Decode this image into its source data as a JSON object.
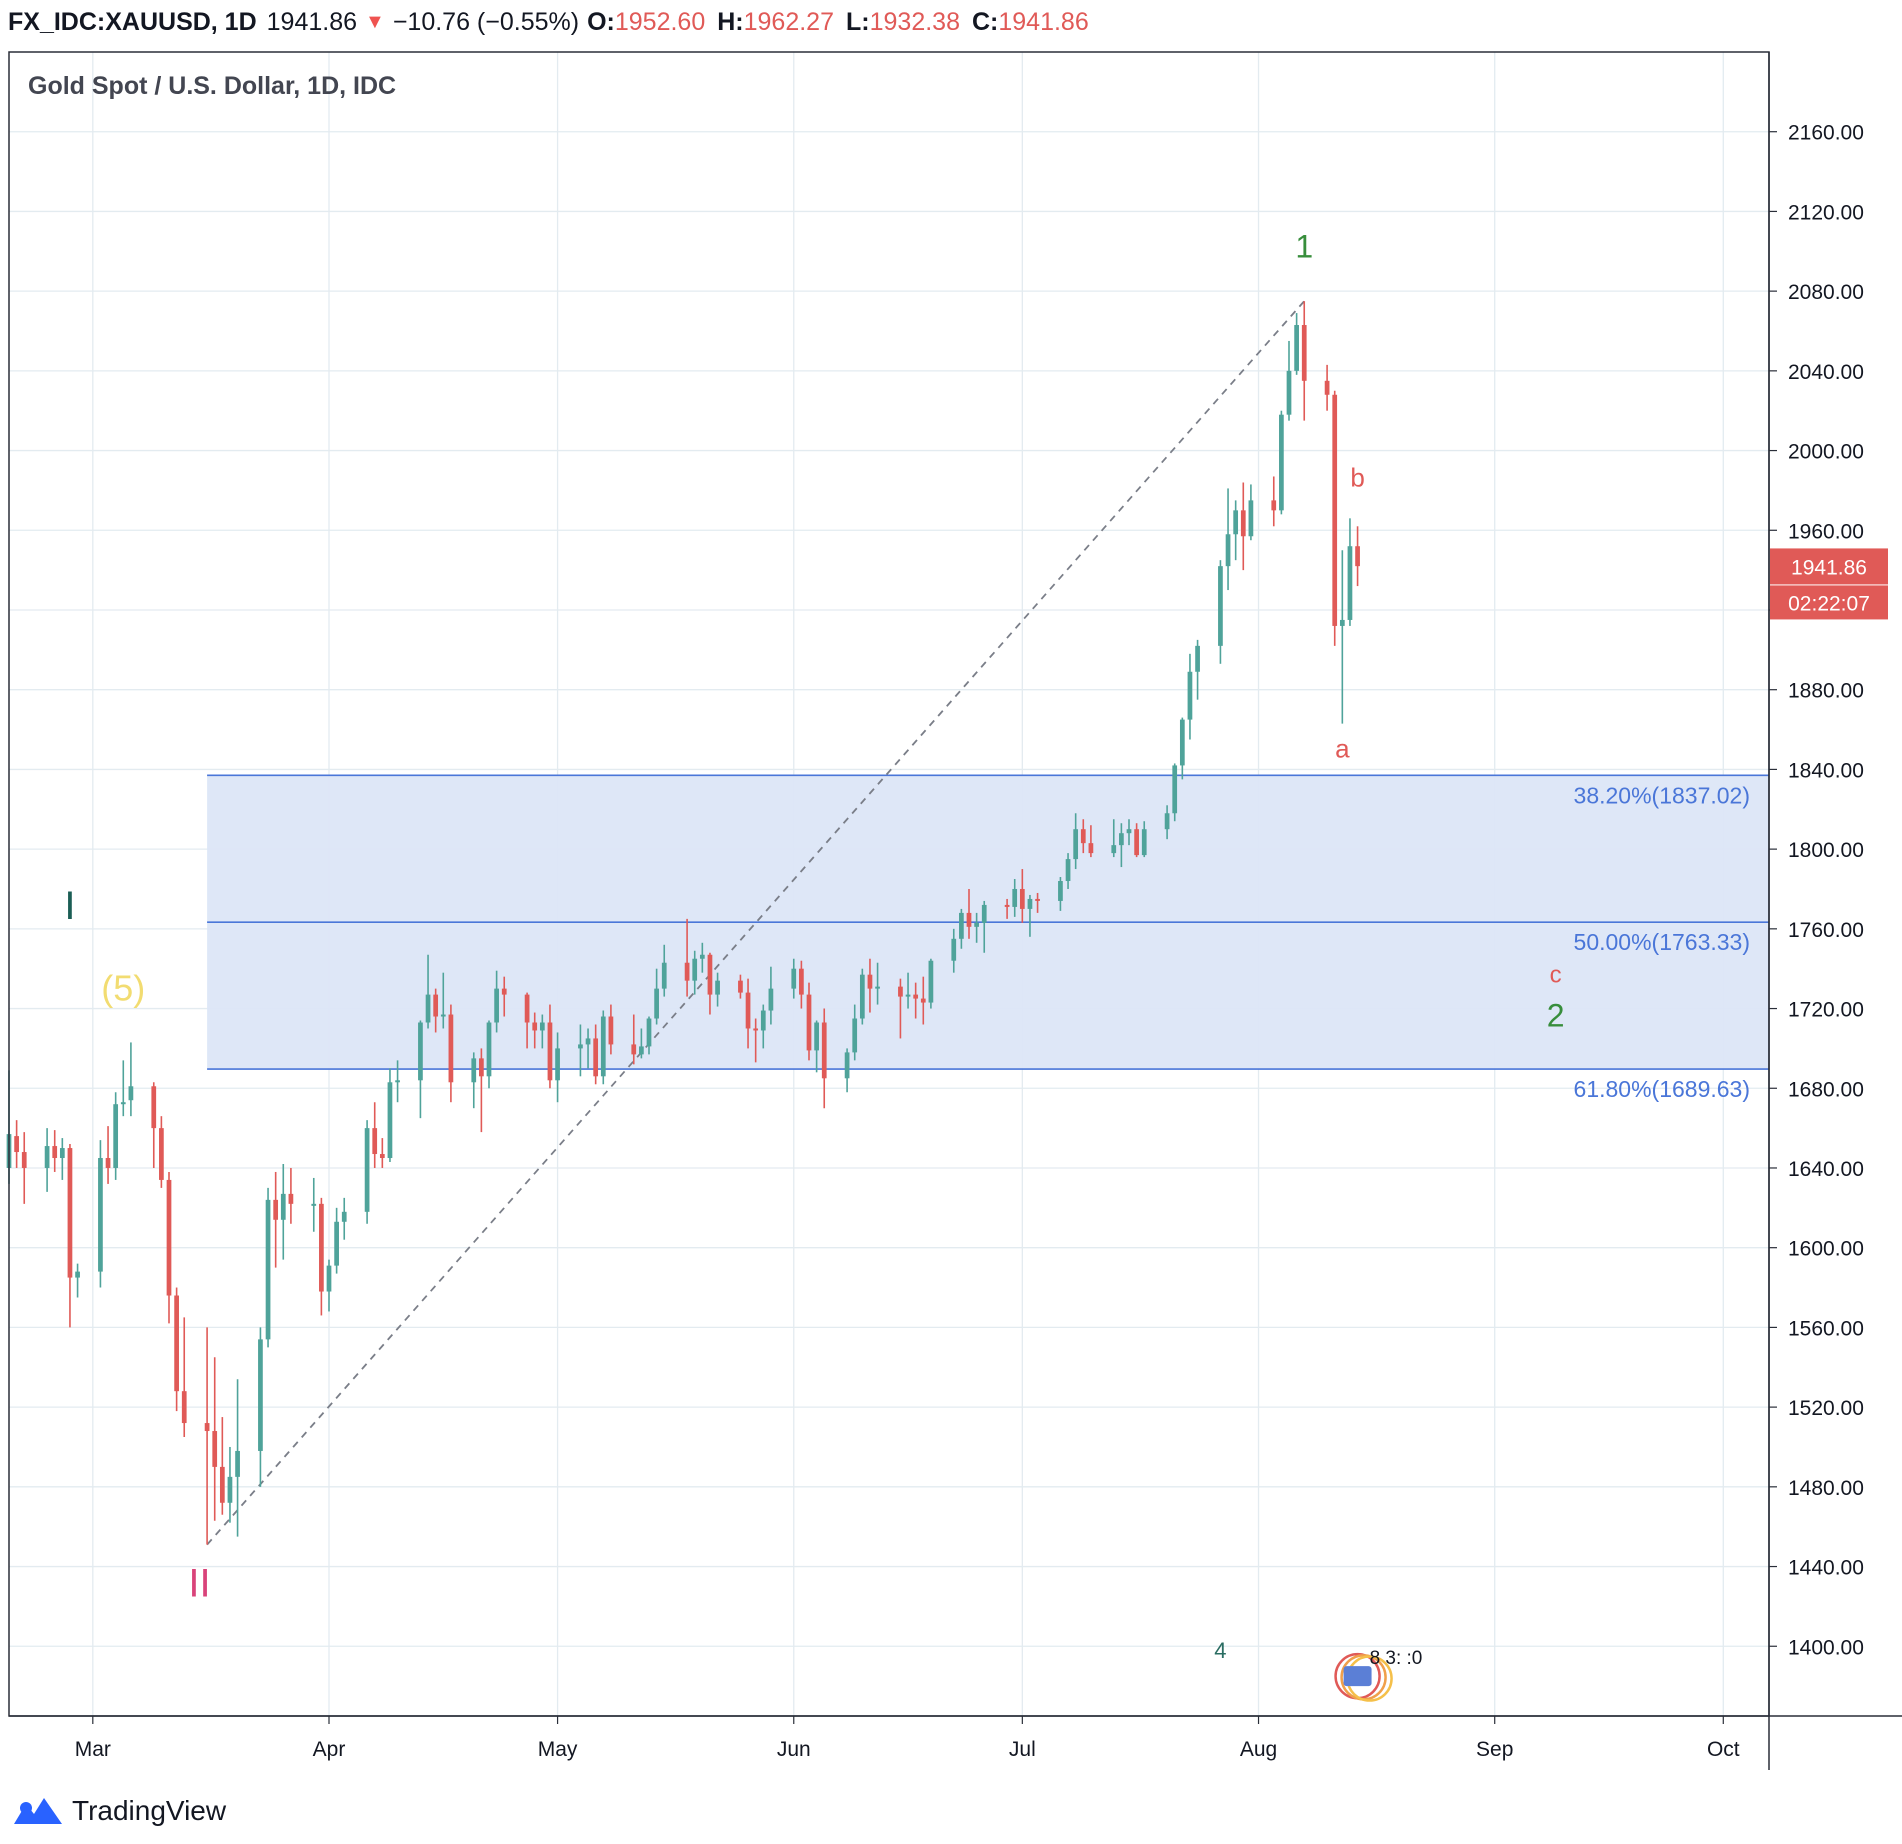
{
  "header": {
    "symbol": "FX_IDC:XAUUSD, 1D",
    "last": "1941.86",
    "change_arrow": "▼",
    "change": "−10.76 (−0.55%)",
    "o_label": "O:",
    "o": "1952.60",
    "h_label": "H:",
    "h": "1962.27",
    "l_label": "L:",
    "l": "1932.38",
    "c_label": "C:",
    "c": "1941.86"
  },
  "footer": {
    "brand": "TradingView"
  },
  "colors": {
    "up": "#4fa39a",
    "down": "#e05a57",
    "fib_fill": "#dce6f7",
    "fib_line": "#4a76d8",
    "grid": "#e3ebf0"
  },
  "chart_data": {
    "type": "candlestick",
    "title": "Gold Spot / U.S. Dollar, 1D, IDC",
    "ylim": [
      1365,
      2200
    ],
    "y_ticks": [
      1400,
      1440,
      1480,
      1520,
      1560,
      1600,
      1640,
      1680,
      1720,
      1760,
      1800,
      1840,
      1880,
      1920,
      1960,
      2000,
      2040,
      2080,
      2120,
      2160
    ],
    "x_ticks": [
      {
        "label": "Mar",
        "date": "2020-03-01"
      },
      {
        "label": "Apr",
        "date": "2020-04-01"
      },
      {
        "label": "May",
        "date": "2020-05-01"
      },
      {
        "label": "Jun",
        "date": "2020-06-01"
      },
      {
        "label": "Jul",
        "date": "2020-07-01"
      },
      {
        "label": "Aug",
        "date": "2020-08-01"
      },
      {
        "label": "Sep",
        "date": "2020-09-01"
      },
      {
        "label": "Oct",
        "date": "2020-10-01"
      }
    ],
    "x_range": [
      "2020-02-19",
      "2020-10-07"
    ],
    "price_tag": {
      "price": 1941.86,
      "label": "1941.86",
      "countdown": "02:22:07"
    },
    "fib_levels": [
      {
        "label": "38.20%(1837.02)",
        "price": 1837.02
      },
      {
        "label": "50.00%(1763.33)",
        "price": 1763.33
      },
      {
        "label": "61.80%(1689.63)",
        "price": 1689.63
      }
    ],
    "fib_zone_start": "2020-03-16",
    "trend_line": {
      "from": {
        "date": "2020-03-16",
        "price": 1451
      },
      "to": {
        "date": "2020-08-07",
        "price": 2075
      }
    },
    "wave_labels": [
      {
        "text": "1",
        "date": "2020-08-07",
        "price": 2097,
        "color": "#388e3c",
        "size": 32
      },
      {
        "text": "b",
        "date": "2020-08-14",
        "price": 1982,
        "color": "#e05a57",
        "size": 26
      },
      {
        "text": "a",
        "date": "2020-08-12",
        "price": 1846,
        "color": "#e05a57",
        "size": 26
      },
      {
        "text": "c",
        "date": "2020-09-09",
        "price": 1733,
        "color": "#e05a57",
        "size": 24
      },
      {
        "text": "2",
        "date": "2020-09-09",
        "price": 1711,
        "color": "#388e3c",
        "size": 32
      },
      {
        "text": "I",
        "date": "2020-02-27",
        "price": 1765,
        "color": "#1b5e55",
        "size": 40
      },
      {
        "text": "(5)",
        "date": "2020-03-05",
        "price": 1724,
        "color": "#f2dc71",
        "size": 36
      },
      {
        "text": "II",
        "date": "2020-03-15",
        "price": 1425,
        "color": "#d9437a",
        "size": 40
      },
      {
        "text": "4",
        "date": "2020-07-27",
        "price": 1394,
        "color": "#2a6d62",
        "size": 22
      }
    ],
    "event_marker": {
      "text": "8 3: :0",
      "date": "2020-08-14",
      "price": 1385
    },
    "candles": [
      {
        "d": "2020-02-19",
        "o": 1640,
        "h": 1689,
        "l": 1632,
        "c": 1657
      },
      {
        "d": "2020-02-20",
        "o": 1656,
        "h": 1664,
        "l": 1640,
        "c": 1648
      },
      {
        "d": "2020-02-21",
        "o": 1648,
        "h": 1658,
        "l": 1622,
        "c": 1640
      },
      {
        "d": "2020-02-24",
        "o": 1640,
        "h": 1660,
        "l": 1628,
        "c": 1651
      },
      {
        "d": "2020-02-25",
        "o": 1651,
        "h": 1659,
        "l": 1638,
        "c": 1645
      },
      {
        "d": "2020-02-26",
        "o": 1645,
        "h": 1655,
        "l": 1634,
        "c": 1650
      },
      {
        "d": "2020-02-27",
        "o": 1650,
        "h": 1652,
        "l": 1560,
        "c": 1585
      },
      {
        "d": "2020-02-28",
        "o": 1585,
        "h": 1592,
        "l": 1575,
        "c": 1588
      },
      {
        "d": "2020-03-02",
        "o": 1588,
        "h": 1654,
        "l": 1580,
        "c": 1645
      },
      {
        "d": "2020-03-03",
        "o": 1645,
        "h": 1661,
        "l": 1632,
        "c": 1640
      },
      {
        "d": "2020-03-04",
        "o": 1640,
        "h": 1678,
        "l": 1634,
        "c": 1672
      },
      {
        "d": "2020-03-05",
        "o": 1672,
        "h": 1694,
        "l": 1666,
        "c": 1673
      },
      {
        "d": "2020-03-06",
        "o": 1674,
        "h": 1703,
        "l": 1666,
        "c": 1681
      },
      {
        "d": "2020-03-09",
        "o": 1681,
        "h": 1683,
        "l": 1640,
        "c": 1660
      },
      {
        "d": "2020-03-10",
        "o": 1660,
        "h": 1666,
        "l": 1630,
        "c": 1634
      },
      {
        "d": "2020-03-11",
        "o": 1634,
        "h": 1638,
        "l": 1562,
        "c": 1576
      },
      {
        "d": "2020-03-12",
        "o": 1576,
        "h": 1580,
        "l": 1518,
        "c": 1528
      },
      {
        "d": "2020-03-13",
        "o": 1528,
        "h": 1565,
        "l": 1505,
        "c": 1512
      },
      {
        "d": "2020-03-16",
        "o": 1512,
        "h": 1560,
        "l": 1451,
        "c": 1508
      },
      {
        "d": "2020-03-17",
        "o": 1508,
        "h": 1545,
        "l": 1463,
        "c": 1490
      },
      {
        "d": "2020-03-18",
        "o": 1490,
        "h": 1515,
        "l": 1466,
        "c": 1472
      },
      {
        "d": "2020-03-19",
        "o": 1472,
        "h": 1500,
        "l": 1462,
        "c": 1485
      },
      {
        "d": "2020-03-20",
        "o": 1485,
        "h": 1534,
        "l": 1455,
        "c": 1498
      },
      {
        "d": "2020-03-23",
        "o": 1498,
        "h": 1560,
        "l": 1480,
        "c": 1554
      },
      {
        "d": "2020-03-24",
        "o": 1554,
        "h": 1630,
        "l": 1550,
        "c": 1624
      },
      {
        "d": "2020-03-25",
        "o": 1624,
        "h": 1638,
        "l": 1590,
        "c": 1614
      },
      {
        "d": "2020-03-26",
        "o": 1614,
        "h": 1642,
        "l": 1594,
        "c": 1627
      },
      {
        "d": "2020-03-27",
        "o": 1627,
        "h": 1640,
        "l": 1612,
        "c": 1622
      },
      {
        "d": "2020-03-30",
        "o": 1622,
        "h": 1635,
        "l": 1608,
        "c": 1622
      },
      {
        "d": "2020-03-31",
        "o": 1622,
        "h": 1625,
        "l": 1566,
        "c": 1578
      },
      {
        "d": "2020-04-01",
        "o": 1578,
        "h": 1594,
        "l": 1568,
        "c": 1591
      },
      {
        "d": "2020-04-02",
        "o": 1591,
        "h": 1620,
        "l": 1587,
        "c": 1613
      },
      {
        "d": "2020-04-03",
        "o": 1613,
        "h": 1625,
        "l": 1604,
        "c": 1618
      },
      {
        "d": "2020-04-06",
        "o": 1618,
        "h": 1664,
        "l": 1612,
        "c": 1660
      },
      {
        "d": "2020-04-07",
        "o": 1660,
        "h": 1673,
        "l": 1640,
        "c": 1647
      },
      {
        "d": "2020-04-08",
        "o": 1647,
        "h": 1655,
        "l": 1640,
        "c": 1645
      },
      {
        "d": "2020-04-09",
        "o": 1645,
        "h": 1690,
        "l": 1643,
        "c": 1683
      },
      {
        "d": "2020-04-10",
        "o": 1683,
        "h": 1694,
        "l": 1673,
        "c": 1684
      },
      {
        "d": "2020-04-13",
        "o": 1684,
        "h": 1714,
        "l": 1665,
        "c": 1713
      },
      {
        "d": "2020-04-14",
        "o": 1713,
        "h": 1747,
        "l": 1710,
        "c": 1727
      },
      {
        "d": "2020-04-15",
        "o": 1727,
        "h": 1730,
        "l": 1708,
        "c": 1716
      },
      {
        "d": "2020-04-16",
        "o": 1716,
        "h": 1738,
        "l": 1710,
        "c": 1717
      },
      {
        "d": "2020-04-17",
        "o": 1717,
        "h": 1722,
        "l": 1673,
        "c": 1683
      },
      {
        "d": "2020-04-20",
        "o": 1683,
        "h": 1698,
        "l": 1670,
        "c": 1695
      },
      {
        "d": "2020-04-21",
        "o": 1695,
        "h": 1700,
        "l": 1658,
        "c": 1686
      },
      {
        "d": "2020-04-22",
        "o": 1686,
        "h": 1714,
        "l": 1680,
        "c": 1713
      },
      {
        "d": "2020-04-23",
        "o": 1713,
        "h": 1739,
        "l": 1708,
        "c": 1730
      },
      {
        "d": "2020-04-24",
        "o": 1730,
        "h": 1736,
        "l": 1716,
        "c": 1727
      },
      {
        "d": "2020-04-27",
        "o": 1727,
        "h": 1728,
        "l": 1700,
        "c": 1713
      },
      {
        "d": "2020-04-28",
        "o": 1713,
        "h": 1718,
        "l": 1700,
        "c": 1709
      },
      {
        "d": "2020-04-29",
        "o": 1709,
        "h": 1717,
        "l": 1700,
        "c": 1713
      },
      {
        "d": "2020-04-30",
        "o": 1713,
        "h": 1722,
        "l": 1680,
        "c": 1684
      },
      {
        "d": "2020-05-01",
        "o": 1684,
        "h": 1708,
        "l": 1673,
        "c": 1700
      },
      {
        "d": "2020-05-04",
        "o": 1700,
        "h": 1712,
        "l": 1686,
        "c": 1702
      },
      {
        "d": "2020-05-05",
        "o": 1702,
        "h": 1710,
        "l": 1690,
        "c": 1705
      },
      {
        "d": "2020-05-06",
        "o": 1705,
        "h": 1712,
        "l": 1682,
        "c": 1686
      },
      {
        "d": "2020-05-07",
        "o": 1686,
        "h": 1719,
        "l": 1682,
        "c": 1716
      },
      {
        "d": "2020-05-08",
        "o": 1716,
        "h": 1722,
        "l": 1697,
        "c": 1702
      },
      {
        "d": "2020-05-11",
        "o": 1702,
        "h": 1717,
        "l": 1692,
        "c": 1697
      },
      {
        "d": "2020-05-12",
        "o": 1697,
        "h": 1710,
        "l": 1695,
        "c": 1701
      },
      {
        "d": "2020-05-13",
        "o": 1701,
        "h": 1716,
        "l": 1697,
        "c": 1715
      },
      {
        "d": "2020-05-14",
        "o": 1715,
        "h": 1740,
        "l": 1712,
        "c": 1730
      },
      {
        "d": "2020-05-15",
        "o": 1730,
        "h": 1752,
        "l": 1726,
        "c": 1743
      },
      {
        "d": "2020-05-18",
        "o": 1743,
        "h": 1765,
        "l": 1726,
        "c": 1734
      },
      {
        "d": "2020-05-19",
        "o": 1734,
        "h": 1749,
        "l": 1727,
        "c": 1745
      },
      {
        "d": "2020-05-20",
        "o": 1745,
        "h": 1753,
        "l": 1738,
        "c": 1747
      },
      {
        "d": "2020-05-21",
        "o": 1747,
        "h": 1748,
        "l": 1717,
        "c": 1727
      },
      {
        "d": "2020-05-22",
        "o": 1727,
        "h": 1738,
        "l": 1721,
        "c": 1734
      },
      {
        "d": "2020-05-25",
        "o": 1734,
        "h": 1737,
        "l": 1725,
        "c": 1728
      },
      {
        "d": "2020-05-26",
        "o": 1728,
        "h": 1735,
        "l": 1700,
        "c": 1710
      },
      {
        "d": "2020-05-27",
        "o": 1710,
        "h": 1715,
        "l": 1693,
        "c": 1709
      },
      {
        "d": "2020-05-28",
        "o": 1709,
        "h": 1722,
        "l": 1700,
        "c": 1719
      },
      {
        "d": "2020-05-29",
        "o": 1719,
        "h": 1741,
        "l": 1712,
        "c": 1730
      },
      {
        "d": "2020-06-01",
        "o": 1730,
        "h": 1745,
        "l": 1725,
        "c": 1740
      },
      {
        "d": "2020-06-02",
        "o": 1740,
        "h": 1744,
        "l": 1720,
        "c": 1727
      },
      {
        "d": "2020-06-03",
        "o": 1727,
        "h": 1733,
        "l": 1694,
        "c": 1699
      },
      {
        "d": "2020-06-04",
        "o": 1699,
        "h": 1714,
        "l": 1688,
        "c": 1713
      },
      {
        "d": "2020-06-05",
        "o": 1713,
        "h": 1720,
        "l": 1670,
        "c": 1685
      },
      {
        "d": "2020-06-08",
        "o": 1685,
        "h": 1700,
        "l": 1678,
        "c": 1698
      },
      {
        "d": "2020-06-09",
        "o": 1698,
        "h": 1722,
        "l": 1694,
        "c": 1715
      },
      {
        "d": "2020-06-10",
        "o": 1715,
        "h": 1740,
        "l": 1712,
        "c": 1737
      },
      {
        "d": "2020-06-11",
        "o": 1737,
        "h": 1745,
        "l": 1718,
        "c": 1730
      },
      {
        "d": "2020-06-12",
        "o": 1730,
        "h": 1743,
        "l": 1722,
        "c": 1731
      },
      {
        "d": "2020-06-15",
        "o": 1731,
        "h": 1735,
        "l": 1705,
        "c": 1726
      },
      {
        "d": "2020-06-16",
        "o": 1726,
        "h": 1738,
        "l": 1720,
        "c": 1727
      },
      {
        "d": "2020-06-17",
        "o": 1727,
        "h": 1733,
        "l": 1715,
        "c": 1725
      },
      {
        "d": "2020-06-18",
        "o": 1725,
        "h": 1736,
        "l": 1712,
        "c": 1723
      },
      {
        "d": "2020-06-19",
        "o": 1723,
        "h": 1745,
        "l": 1720,
        "c": 1744
      },
      {
        "d": "2020-06-22",
        "o": 1744,
        "h": 1760,
        "l": 1738,
        "c": 1755
      },
      {
        "d": "2020-06-23",
        "o": 1755,
        "h": 1770,
        "l": 1750,
        "c": 1768
      },
      {
        "d": "2020-06-24",
        "o": 1768,
        "h": 1780,
        "l": 1755,
        "c": 1761
      },
      {
        "d": "2020-06-25",
        "o": 1761,
        "h": 1768,
        "l": 1753,
        "c": 1763
      },
      {
        "d": "2020-06-26",
        "o": 1763,
        "h": 1774,
        "l": 1748,
        "c": 1772
      },
      {
        "d": "2020-06-29",
        "o": 1772,
        "h": 1775,
        "l": 1765,
        "c": 1771
      },
      {
        "d": "2020-06-30",
        "o": 1771,
        "h": 1785,
        "l": 1766,
        "c": 1780
      },
      {
        "d": "2020-07-01",
        "o": 1780,
        "h": 1790,
        "l": 1763,
        "c": 1770
      },
      {
        "d": "2020-07-02",
        "o": 1770,
        "h": 1777,
        "l": 1756,
        "c": 1775
      },
      {
        "d": "2020-07-03",
        "o": 1775,
        "h": 1778,
        "l": 1768,
        "c": 1774
      },
      {
        "d": "2020-07-06",
        "o": 1774,
        "h": 1786,
        "l": 1769,
        "c": 1784
      },
      {
        "d": "2020-07-07",
        "o": 1784,
        "h": 1798,
        "l": 1780,
        "c": 1795
      },
      {
        "d": "2020-07-08",
        "o": 1795,
        "h": 1818,
        "l": 1790,
        "c": 1810
      },
      {
        "d": "2020-07-09",
        "o": 1810,
        "h": 1815,
        "l": 1798,
        "c": 1803
      },
      {
        "d": "2020-07-10",
        "o": 1803,
        "h": 1812,
        "l": 1796,
        "c": 1798
      },
      {
        "d": "2020-07-13",
        "o": 1798,
        "h": 1815,
        "l": 1796,
        "c": 1802
      },
      {
        "d": "2020-07-14",
        "o": 1802,
        "h": 1813,
        "l": 1791,
        "c": 1808
      },
      {
        "d": "2020-07-15",
        "o": 1808,
        "h": 1815,
        "l": 1802,
        "c": 1810
      },
      {
        "d": "2020-07-16",
        "o": 1810,
        "h": 1813,
        "l": 1796,
        "c": 1797
      },
      {
        "d": "2020-07-17",
        "o": 1797,
        "h": 1814,
        "l": 1796,
        "c": 1810
      },
      {
        "d": "2020-07-20",
        "o": 1810,
        "h": 1822,
        "l": 1805,
        "c": 1818
      },
      {
        "d": "2020-07-21",
        "o": 1818,
        "h": 1843,
        "l": 1814,
        "c": 1842
      },
      {
        "d": "2020-07-22",
        "o": 1842,
        "h": 1866,
        "l": 1835,
        "c": 1865
      },
      {
        "d": "2020-07-23",
        "o": 1865,
        "h": 1898,
        "l": 1855,
        "c": 1889
      },
      {
        "d": "2020-07-24",
        "o": 1889,
        "h": 1905,
        "l": 1875,
        "c": 1902
      },
      {
        "d": "2020-07-27",
        "o": 1902,
        "h": 1945,
        "l": 1893,
        "c": 1942
      },
      {
        "d": "2020-07-28",
        "o": 1942,
        "h": 1981,
        "l": 1930,
        "c": 1958
      },
      {
        "d": "2020-07-29",
        "o": 1958,
        "h": 1975,
        "l": 1945,
        "c": 1970
      },
      {
        "d": "2020-07-30",
        "o": 1970,
        "h": 1984,
        "l": 1940,
        "c": 1957
      },
      {
        "d": "2020-07-31",
        "o": 1957,
        "h": 1983,
        "l": 1955,
        "c": 1975
      },
      {
        "d": "2020-08-03",
        "o": 1975,
        "h": 1987,
        "l": 1962,
        "c": 1970
      },
      {
        "d": "2020-08-04",
        "o": 1970,
        "h": 2020,
        "l": 1968,
        "c": 2018
      },
      {
        "d": "2020-08-05",
        "o": 2018,
        "h": 2055,
        "l": 2015,
        "c": 2040
      },
      {
        "d": "2020-08-06",
        "o": 2040,
        "h": 2069,
        "l": 2038,
        "c": 2063
      },
      {
        "d": "2020-08-07",
        "o": 2063,
        "h": 2075,
        "l": 2015,
        "c": 2035
      },
      {
        "d": "2020-08-10",
        "o": 2035,
        "h": 2043,
        "l": 2020,
        "c": 2028
      },
      {
        "d": "2020-08-11",
        "o": 2028,
        "h": 2030,
        "l": 1902,
        "c": 1912
      },
      {
        "d": "2020-08-12",
        "o": 1912,
        "h": 1950,
        "l": 1863,
        "c": 1915
      },
      {
        "d": "2020-08-13",
        "o": 1915,
        "h": 1966,
        "l": 1912,
        "c": 1952
      },
      {
        "d": "2020-08-14",
        "o": 1952,
        "h": 1962,
        "l": 1932,
        "c": 1942
      }
    ]
  }
}
